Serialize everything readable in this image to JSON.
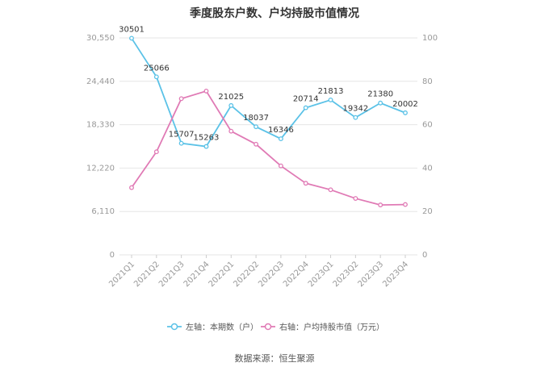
{
  "title": "季度股东户数、户均持股市值情况",
  "source": "数据来源：恒生聚源",
  "colors": {
    "left_series": "#5bc2e7",
    "right_series": "#e07ab5",
    "grid": "#e6e6e6",
    "axis_text": "#999999"
  },
  "chart_data": {
    "type": "line",
    "categories": [
      "2021Q1",
      "2021Q2",
      "2021Q3",
      "2021Q4",
      "2022Q1",
      "2022Q2",
      "2022Q3",
      "2022Q4",
      "2023Q1",
      "2023Q2",
      "2023Q3",
      "2023Q4"
    ],
    "left_axis": {
      "ylim": [
        0,
        30550
      ],
      "ticks": [
        0,
        6110,
        12220,
        18330,
        24440,
        30550
      ],
      "tick_labels": [
        "0",
        "6,110",
        "12,220",
        "18,330",
        "24,440",
        "30,550"
      ]
    },
    "right_axis": {
      "ylim": [
        0,
        100
      ],
      "ticks": [
        0,
        20,
        40,
        60,
        80,
        100
      ],
      "tick_labels": [
        "0",
        "20",
        "40",
        "60",
        "80",
        "100"
      ]
    },
    "series": [
      {
        "name": "左轴：本期数（户）",
        "axis": "left",
        "values": [
          30501,
          25066,
          15707,
          15263,
          21025,
          18037,
          16346,
          20714,
          21813,
          19342,
          21380,
          20002
        ],
        "labels": [
          "30501",
          "25066",
          "15707",
          "15263",
          "21025",
          "18037",
          "16346",
          "20714",
          "21813",
          "19342",
          "21380",
          "20002"
        ]
      },
      {
        "name": "右轴：户均持股市值（万元）",
        "axis": "right",
        "values": [
          31,
          47.5,
          72,
          75.5,
          57,
          51,
          41,
          33,
          30,
          26,
          23,
          23.2
        ]
      }
    ],
    "grid": true,
    "legend_position": "bottom"
  }
}
